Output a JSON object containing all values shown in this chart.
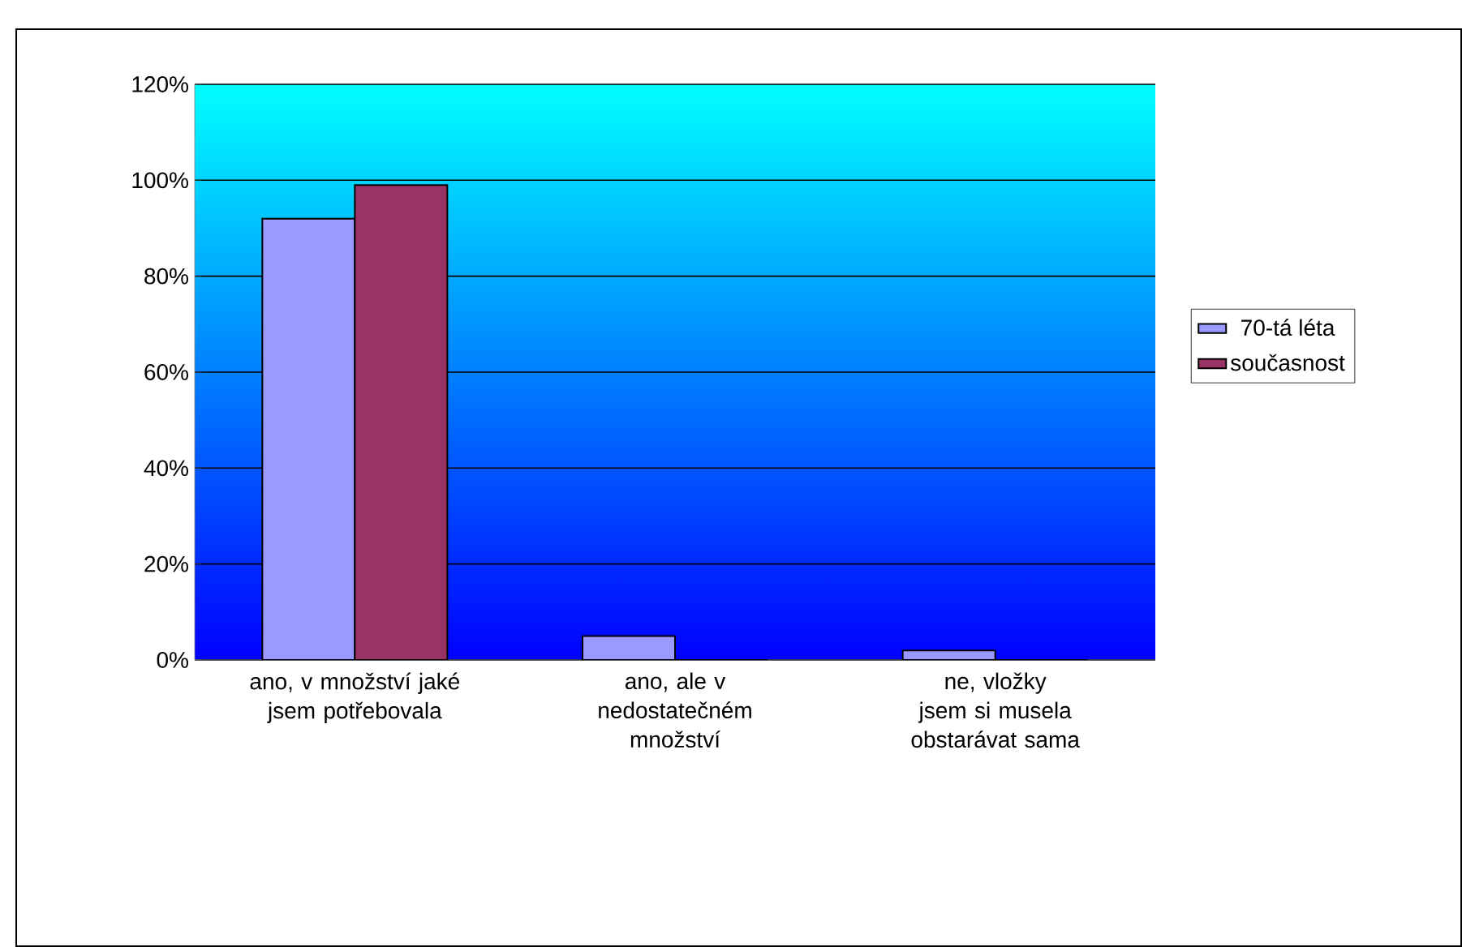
{
  "chart_data": {
    "type": "bar",
    "categories": [
      "ano, v množství jaké jsem potřebovala",
      "ano, ale v nedostatečném množství",
      "ne, vložky jsem si musela obstarávat sama"
    ],
    "series": [
      {
        "name": "70-tá léta",
        "color": "#9999ff",
        "values": [
          92,
          5,
          2
        ]
      },
      {
        "name": "současnost",
        "color": "#993366",
        "values": [
          99,
          0,
          0
        ]
      }
    ],
    "ylim": [
      0,
      120
    ],
    "yticks": [
      {
        "value": 0,
        "label": "0%"
      },
      {
        "value": 20,
        "label": "20%"
      },
      {
        "value": 40,
        "label": "40%"
      },
      {
        "value": 60,
        "label": "60%"
      },
      {
        "value": 80,
        "label": "80%"
      },
      {
        "value": 100,
        "label": "100%"
      },
      {
        "value": 120,
        "label": "120%"
      }
    ],
    "grid": "y",
    "legend": "right"
  }
}
